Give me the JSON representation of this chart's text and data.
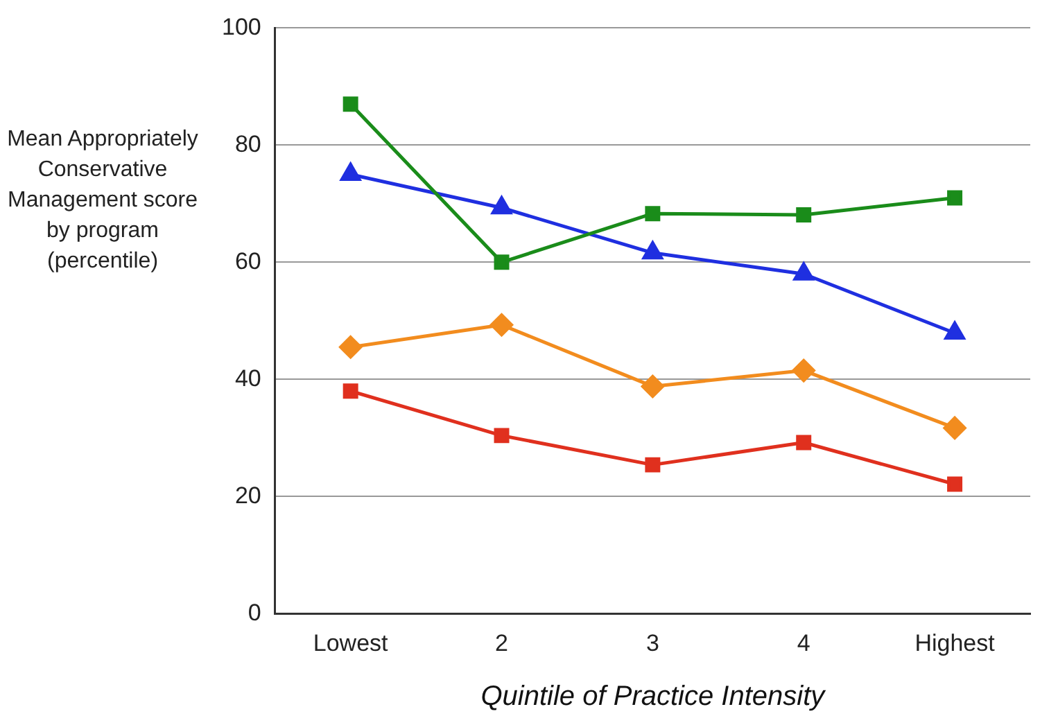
{
  "chart_data": {
    "type": "line",
    "ylabel": "Mean Appropriately Conservative Management score by program (percentile)",
    "xlabel": "Quintile of Practice Intensity",
    "categories": [
      "Lowest",
      "2",
      "3",
      "4",
      "Highest"
    ],
    "ylim": [
      0,
      100
    ],
    "yticks": [
      0,
      20,
      40,
      60,
      80,
      100
    ],
    "grid": "y",
    "legend": false,
    "line_style": "solid",
    "series": [
      {
        "color": "#1a8c1a",
        "marker": "square",
        "values": [
          87,
          60,
          68.3,
          68.1,
          71
        ]
      },
      {
        "color": "#1f2fe0",
        "marker": "triangle",
        "values": [
          75,
          69.3,
          61.6,
          58,
          47.9
        ]
      },
      {
        "color": "#f28c1e",
        "marker": "diamond",
        "values": [
          45.5,
          49.3,
          38.8,
          41.5,
          31.7
        ]
      },
      {
        "color": "#e0301e",
        "marker": "square",
        "values": [
          38,
          30.4,
          25.4,
          29.2,
          22.1
        ]
      }
    ]
  }
}
